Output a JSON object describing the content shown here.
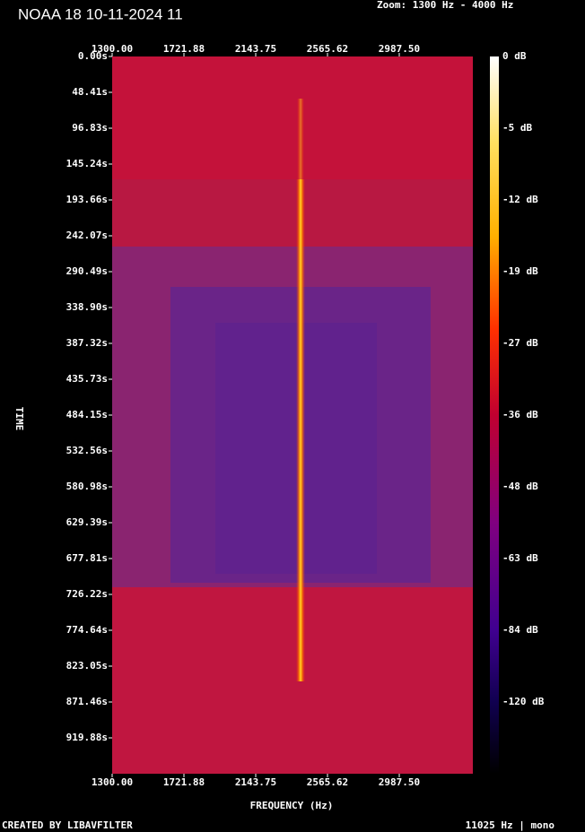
{
  "chart_data": {
    "type": "spectrogram",
    "title": "NOAA 18 10-11-2024 11",
    "subtitle": "Zoom: 1300 Hz - 4000 Hz",
    "x_label": "FREQUENCY (Hz)",
    "y_label": "TIME",
    "footer_left": "CREATED BY LIBAVFILTER",
    "footer_right": "11025 Hz | mono",
    "xlim": [
      1300,
      3420
    ],
    "xticks": [
      {
        "value": 1300,
        "label": "1300.00"
      },
      {
        "value": 1721.88,
        "label": "1721.88"
      },
      {
        "value": 2143.75,
        "label": "2143.75"
      },
      {
        "value": 2565.62,
        "label": "2565.62"
      },
      {
        "value": 2987.5,
        "label": "2987.50"
      }
    ],
    "ylim": [
      0,
      968.3
    ],
    "yticks": [
      {
        "value": 0,
        "label": "0.00s"
      },
      {
        "value": 48.41,
        "label": "48.41s"
      },
      {
        "value": 96.83,
        "label": "96.83s"
      },
      {
        "value": 145.24,
        "label": "145.24s"
      },
      {
        "value": 193.66,
        "label": "193.66s"
      },
      {
        "value": 242.07,
        "label": "242.07s"
      },
      {
        "value": 290.49,
        "label": "290.49s"
      },
      {
        "value": 338.9,
        "label": "338.90s"
      },
      {
        "value": 387.32,
        "label": "387.32s"
      },
      {
        "value": 435.73,
        "label": "435.73s"
      },
      {
        "value": 484.15,
        "label": "484.15s"
      },
      {
        "value": 532.56,
        "label": "532.56s"
      },
      {
        "value": 580.98,
        "label": "580.98s"
      },
      {
        "value": 629.39,
        "label": "629.39s"
      },
      {
        "value": 677.81,
        "label": "677.81s"
      },
      {
        "value": 726.22,
        "label": "726.22s"
      },
      {
        "value": 774.64,
        "label": "774.64s"
      },
      {
        "value": 823.05,
        "label": "823.05s"
      },
      {
        "value": 871.46,
        "label": "871.46s"
      },
      {
        "value": 919.88,
        "label": "919.88s"
      }
    ],
    "colorbar_labels": [
      "0 dB",
      "-5 dB",
      "-12 dB",
      "-19 dB",
      "-27 dB",
      "-36 dB",
      "-48 dB",
      "-63 dB",
      "-84 dB",
      "-120 dB"
    ]
  }
}
